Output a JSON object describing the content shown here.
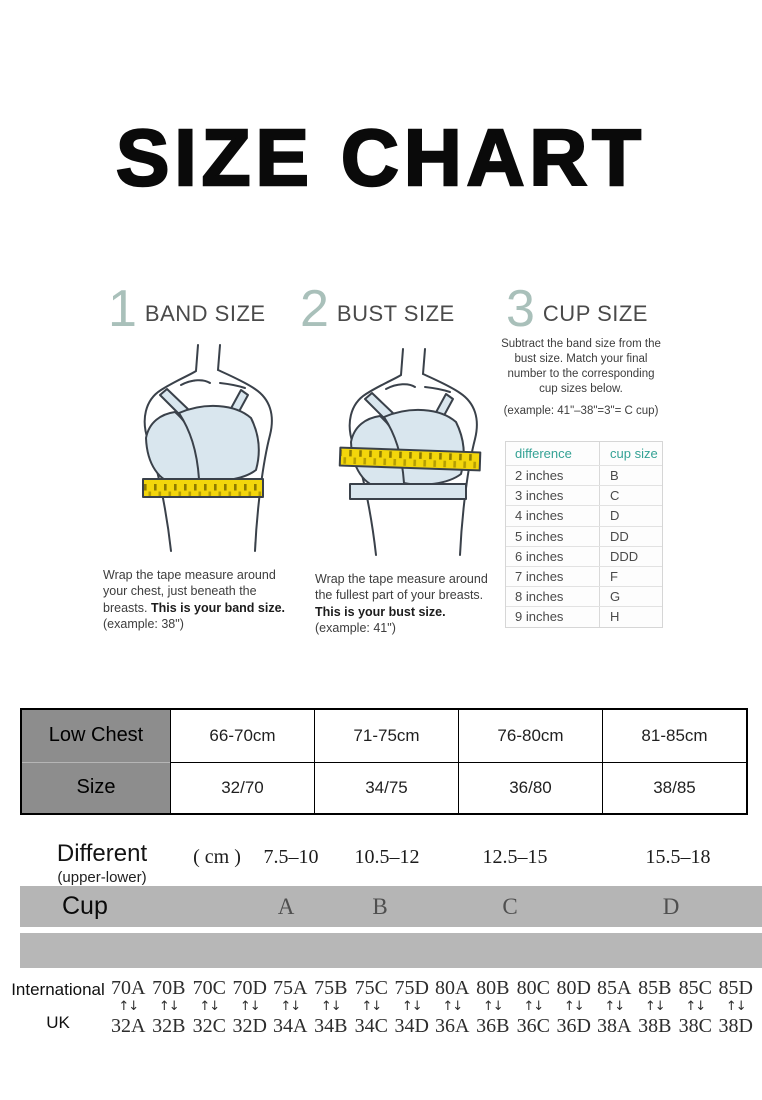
{
  "title": "SIZE CHART",
  "steps": [
    {
      "number": "1",
      "label": "BAND SIZE"
    },
    {
      "number": "2",
      "label": "BUST SIZE"
    },
    {
      "number": "3",
      "label": "CUP SIZE"
    }
  ],
  "instructions": {
    "band": {
      "text": "Wrap the tape measure around your chest, just beneath the breasts.",
      "bold": "This is your band size.",
      "example": "(example: 38\")"
    },
    "bust": {
      "text": "Wrap the tape measure around the fullest part of your breasts.",
      "bold": "This is your bust size.",
      "example": "(example: 41\")"
    },
    "cup": {
      "text": "Subtract the band size from the bust size. Match your final number to the corresponding cup sizes below.",
      "example": "(example: 41\"–38\"=3\"= C cup)"
    }
  },
  "cup_table": {
    "headers": [
      "difference",
      "cup size"
    ],
    "rows": [
      [
        "2 inches",
        "B"
      ],
      [
        "3 inches",
        "C"
      ],
      [
        "4 inches",
        "D"
      ],
      [
        "5 inches",
        "DD"
      ],
      [
        "6 inches",
        "DDD"
      ],
      [
        "7 inches",
        "F"
      ],
      [
        "8 inches",
        "G"
      ],
      [
        "9 inches",
        "H"
      ]
    ]
  },
  "size_table": {
    "row1_header": "Low Chest",
    "row2_header": "Size",
    "row1": [
      "66-70cm",
      "71-75cm",
      "76-80cm",
      "81-85cm"
    ],
    "row2": [
      "32/70",
      "34/75",
      "36/80",
      "38/85"
    ]
  },
  "difference_row": {
    "label": "Different",
    "sublabel": "(upper-lower)",
    "unit": "( cm )",
    "values": [
      "7.5–10",
      "10.5–12",
      "12.5–15",
      "15.5–18"
    ]
  },
  "cup_row": {
    "label": "Cup",
    "values": [
      "A",
      "B",
      "C",
      "D"
    ]
  },
  "conversion": {
    "left_top": "International",
    "left_bottom": "UK",
    "arrow": "↑↓",
    "pairs": [
      [
        "70A",
        "32A"
      ],
      [
        "70B",
        "32B"
      ],
      [
        "70C",
        "32C"
      ],
      [
        "70D",
        "32D"
      ],
      [
        "75A",
        "34A"
      ],
      [
        "75B",
        "34B"
      ],
      [
        "75C",
        "34C"
      ],
      [
        "75D",
        "34D"
      ],
      [
        "80A",
        "36A"
      ],
      [
        "80B",
        "36B"
      ],
      [
        "80C",
        "36C"
      ],
      [
        "80D",
        "36D"
      ],
      [
        "85A",
        "38A"
      ],
      [
        "85B",
        "38B"
      ],
      [
        "85C",
        "38C"
      ],
      [
        "85D",
        "38D"
      ]
    ]
  },
  "colors": {
    "step_number": "#a9c0ba",
    "teal_header": "#35a295",
    "tape_yellow": "#f3d60b",
    "bra_blue": "#d9e6ee",
    "bar_gray": "#b5b5b5",
    "table_header_gray": "#8d8d8d"
  }
}
